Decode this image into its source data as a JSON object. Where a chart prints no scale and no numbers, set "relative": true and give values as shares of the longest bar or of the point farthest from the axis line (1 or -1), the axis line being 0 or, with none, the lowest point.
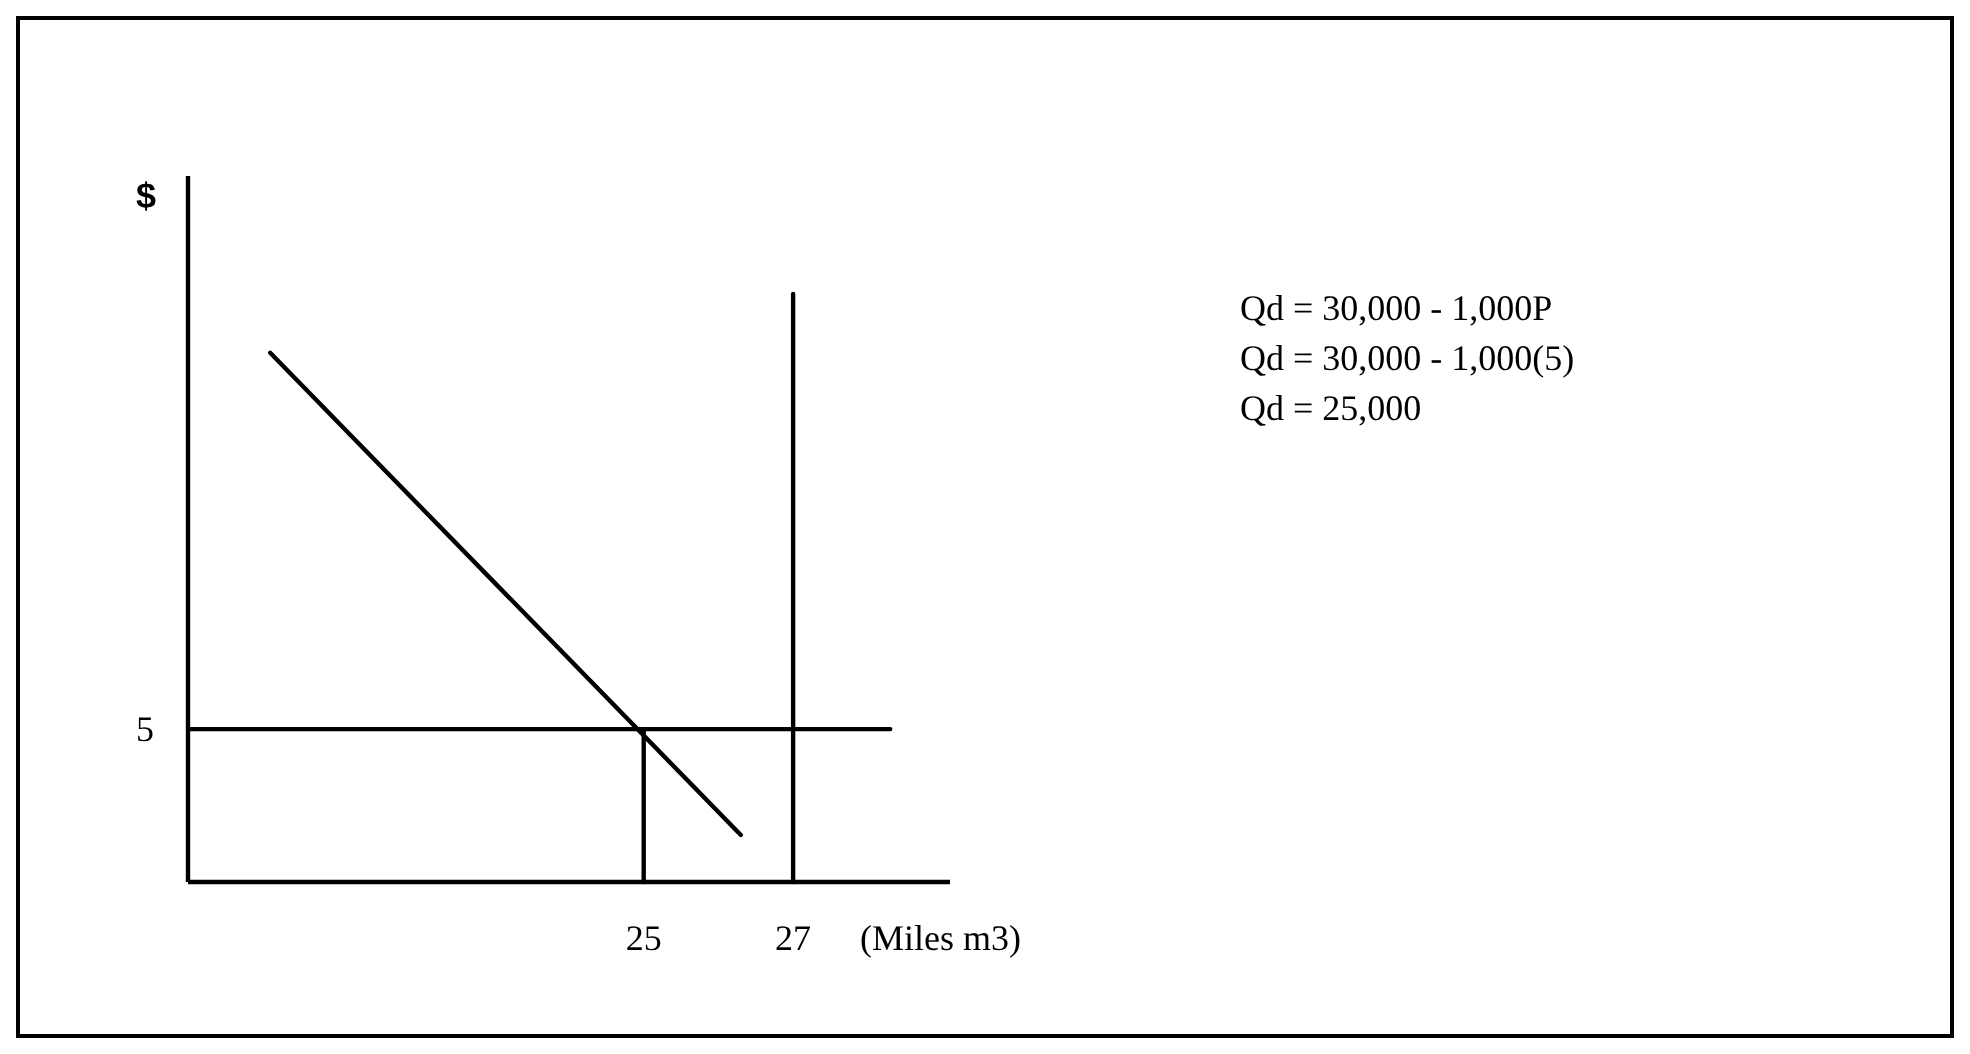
{
  "chart_data": {
    "type": "line",
    "relative": true,
    "xlabel": "(Miles m3)",
    "ylabel": "$",
    "xlim": [
      18.9,
      29.1
    ],
    "xticks": [
      25,
      27
    ],
    "grid": false,
    "marker": "none",
    "line_style": "solid",
    "series": [
      {
        "color": "#000000",
        "x": [
          20,
          26.3
        ],
        "values": [
          0.9,
          0.08
        ]
      },
      {
        "color": "#000000",
        "x": [
          18.9,
          28.3
        ],
        "values": [
          0.26,
          0.26
        ]
      },
      {
        "color": "#000000",
        "x": [
          25,
          25
        ],
        "values": [
          0,
          0.26
        ]
      },
      {
        "color": "#000000",
        "x": [
          27,
          27
        ],
        "values": [
          0,
          1
        ]
      }
    ],
    "annotations": [
      {
        "text": "5",
        "x": 18.9,
        "y": 0.26
      },
      "Qd = 30,000 - 1,000P",
      "Qd = 30,000 - 1,000(5)",
      "Qd = 25,000"
    ]
  }
}
